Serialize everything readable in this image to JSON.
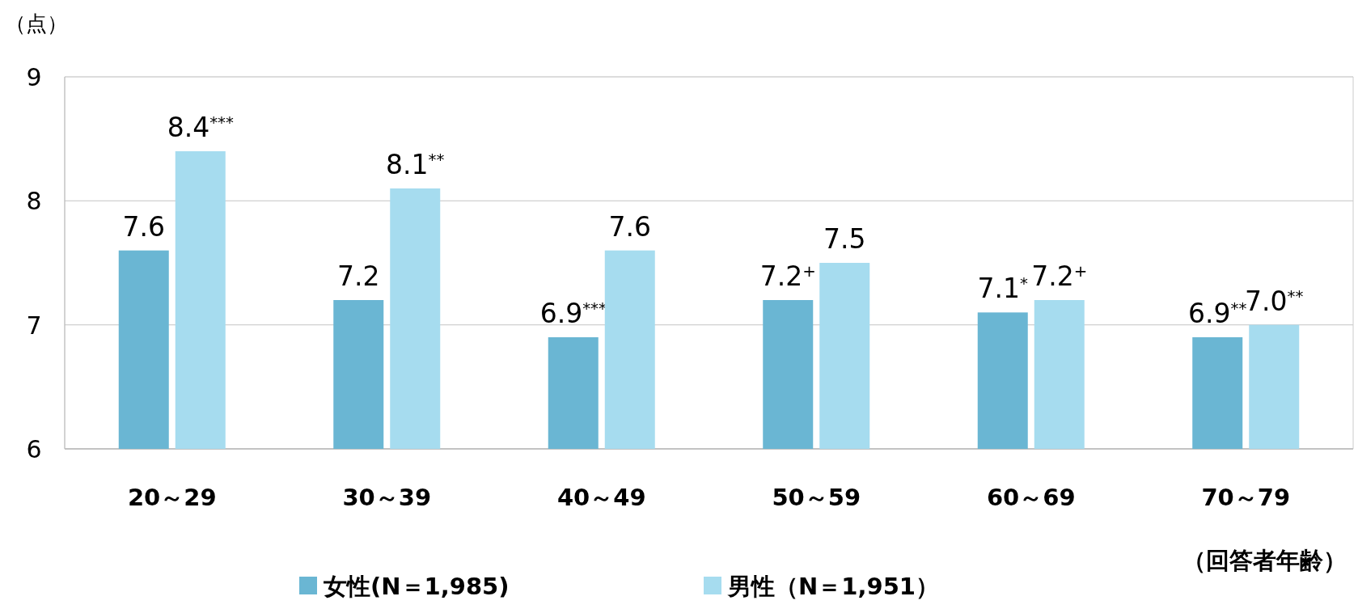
{
  "chart_data": {
    "type": "bar",
    "ylabel": "（点）",
    "xlabel": "（回答者年齢）",
    "categories": [
      "20～29",
      "30～39",
      "40～49",
      "50～59",
      "60～69",
      "70～79"
    ],
    "series": [
      {
        "name": "女性(N＝1,985)",
        "color": "#6ab6d3",
        "values": [
          7.6,
          7.2,
          6.9,
          7.2,
          7.1,
          6.9
        ],
        "value_labels": [
          "7.6",
          "7.2",
          "6.9$^{***}$",
          "7.2$^{+}$",
          "7.1$^{*}$",
          "6.9$^{**}$"
        ]
      },
      {
        "name": "男性（N＝1,951）",
        "color": "#a6dcef",
        "values": [
          8.4,
          8.1,
          7.6,
          7.5,
          7.2,
          7.0
        ],
        "value_labels": [
          "8.4$^{***}$",
          "8.1$^{**}$",
          "7.6",
          "7.5",
          "7.2$^{+}$",
          "7.0$^{**}$"
        ]
      }
    ],
    "ylim": [
      6,
      9
    ],
    "yticks": [
      6,
      7,
      8,
      9
    ],
    "grid": "y",
    "legend": "bottom"
  }
}
